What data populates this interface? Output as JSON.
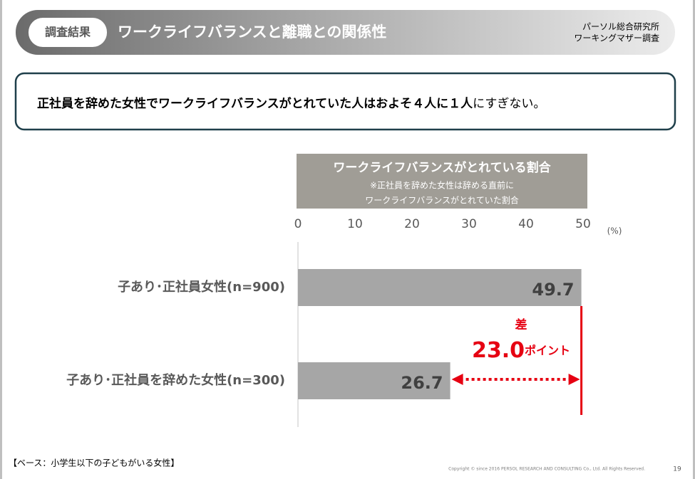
{
  "header": {
    "tag": "調査結果",
    "title": "ワークライフバランスと離職との関係性",
    "source": [
      "パーソル総合研究所",
      "ワーキングマザー調査"
    ]
  },
  "message": {
    "bold": "正社員を辞めた女性でワークライフバランスがとれていた人はおよそ４人に１人",
    "rest": "にすぎない。"
  },
  "chart_data": {
    "type": "bar",
    "orientation": "horizontal",
    "title": "ワークライフバランスがとれている割合",
    "subtitle": [
      "※正社員を辞めた女性は辞める直前に",
      "ワークライフバランスがとれていた割合"
    ],
    "categories": [
      "子あり･正社員女性(n=900)",
      "子あり･正社員を辞めた女性(n=300)"
    ],
    "values": [
      49.7,
      26.7
    ],
    "color": "#a6a6a6",
    "xlim": [
      0,
      50
    ],
    "xticks": [
      0,
      10,
      20,
      30,
      40,
      50
    ],
    "unit": "(%)",
    "annotation": {
      "label": "差",
      "value": "23.0",
      "suffix": "ポイント",
      "color": "#e60012"
    }
  },
  "footer": {
    "base": "【ベース：小学生以下の子どもがいる女性】",
    "copyright": "Copyright © since 2016 PERSOL RESEARCH AND CONSULTING Co., Ltd. All Rights Reserved.",
    "page": "19"
  }
}
